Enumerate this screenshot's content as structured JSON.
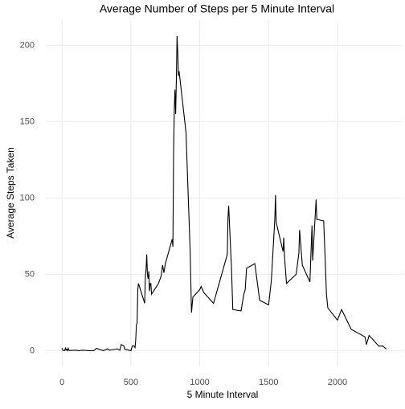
{
  "chart_data": {
    "type": "line",
    "title": "Average Number of Steps per 5 Minute Interval",
    "xlabel": "5 Minute Interval",
    "ylabel": "Average Steps Taken",
    "x": [
      0,
      5,
      10,
      15,
      20,
      25,
      30,
      35,
      40,
      45,
      50,
      55,
      100,
      110,
      120,
      150,
      200,
      230,
      250,
      300,
      330,
      345,
      400,
      420,
      430,
      440,
      450,
      455,
      500,
      510,
      520,
      530,
      535,
      540,
      545,
      550,
      555,
      600,
      605,
      610,
      615,
      620,
      625,
      630,
      635,
      640,
      645,
      650,
      700,
      720,
      730,
      740,
      750,
      800,
      805,
      810,
      815,
      820,
      825,
      830,
      835,
      840,
      845,
      850,
      900,
      930,
      940,
      950,
      1000,
      1010,
      1030,
      1100,
      1200,
      1205,
      1210,
      1230,
      1240,
      1300,
      1320,
      1330,
      1340,
      1400,
      1435,
      1500,
      1520,
      1545,
      1550,
      1555,
      1605,
      1610,
      1615,
      1620,
      1630,
      1700,
      1720,
      1725,
      1745,
      1800,
      1815,
      1820,
      1840,
      1845,
      1850,
      1900,
      1905,
      1910,
      1920,
      1930,
      2000,
      2030,
      2100,
      2200,
      2210,
      2230,
      2300,
      2330,
      2355
    ],
    "series": [
      {
        "name": "Average Steps Taken",
        "color": "#000000",
        "values": [
          1.7,
          0.3,
          0.1,
          0.2,
          0.1,
          2.1,
          0.5,
          0.9,
          0,
          1.5,
          0.3,
          0.1,
          0.3,
          0.2,
          0,
          0.3,
          0,
          0,
          1.5,
          0,
          1.2,
          0.3,
          1.2,
          0.3,
          4,
          3.5,
          3,
          1,
          0,
          3,
          3.3,
          2,
          7,
          17,
          18,
          40,
          44,
          31,
          49,
          53,
          63,
          50,
          47,
          52,
          39,
          44,
          44,
          37,
          44,
          49,
          56,
          51,
          57,
          73,
          68,
          129,
          158,
          171,
          155,
          177,
          206,
          196,
          180,
          183,
          143,
          66,
          25,
          35,
          40,
          42,
          38,
          31,
          63,
          87,
          95,
          55,
          27,
          26,
          37,
          40,
          54,
          57,
          33,
          30,
          46,
          86,
          102,
          84,
          65,
          74,
          63,
          56,
          44,
          50,
          64,
          79,
          56,
          45,
          82,
          59,
          91,
          99,
          86,
          85,
          73,
          62,
          37,
          28,
          20,
          27,
          14,
          9,
          4,
          10,
          3,
          3,
          1
        ]
      }
    ],
    "xlim": [
      -118,
      2473
    ],
    "ylim": [
      -10.3,
      216.5
    ],
    "xticks": [
      0,
      500,
      1000,
      1500,
      2000
    ],
    "yticks": [
      0,
      50,
      100,
      150,
      200
    ],
    "grid": true
  }
}
